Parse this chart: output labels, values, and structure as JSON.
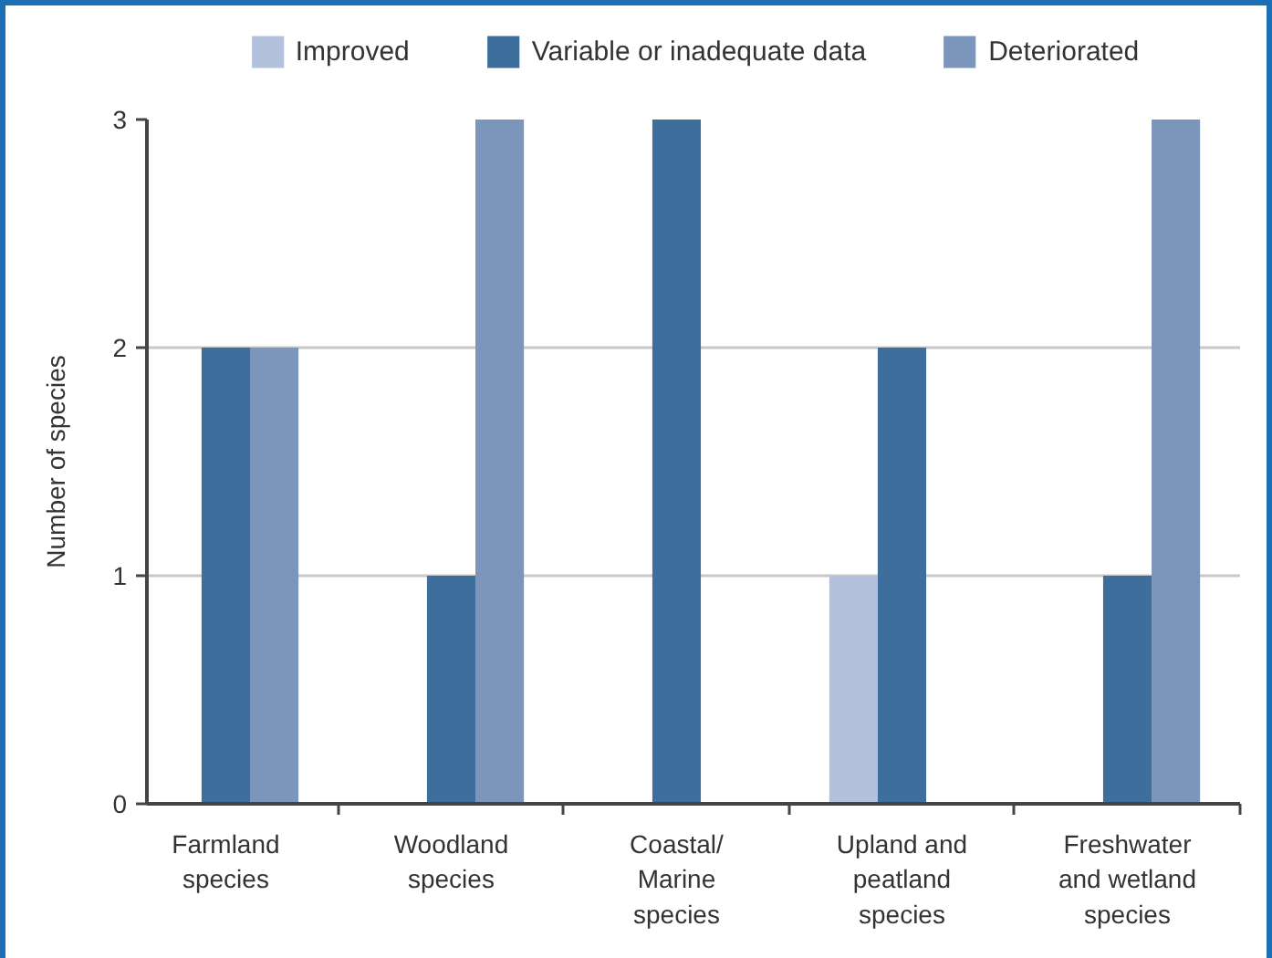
{
  "chart_data": {
    "type": "bar",
    "ylabel": "Number of species",
    "categories": [
      "Farmland\nspecies",
      "Woodland\nspecies",
      "Coastal/\nMarine\nspecies",
      "Upland and\npeatland\nspecies",
      "Freshwater\nand wetland\nspecies"
    ],
    "series": [
      {
        "name": "Improved",
        "color": "#b3c1dc",
        "values": [
          0,
          0,
          0,
          1,
          0
        ]
      },
      {
        "name": "Variable or inadequate data",
        "color": "#3d6e9c",
        "values": [
          2,
          1,
          3,
          2,
          1
        ]
      },
      {
        "name": "Deteriorated",
        "color": "#7b95bb",
        "values": [
          2,
          3,
          0,
          0,
          3
        ]
      }
    ],
    "ylim": [
      0,
      3
    ],
    "yticks": [
      0,
      1,
      2,
      3
    ],
    "grid": "y",
    "legend": "top"
  }
}
